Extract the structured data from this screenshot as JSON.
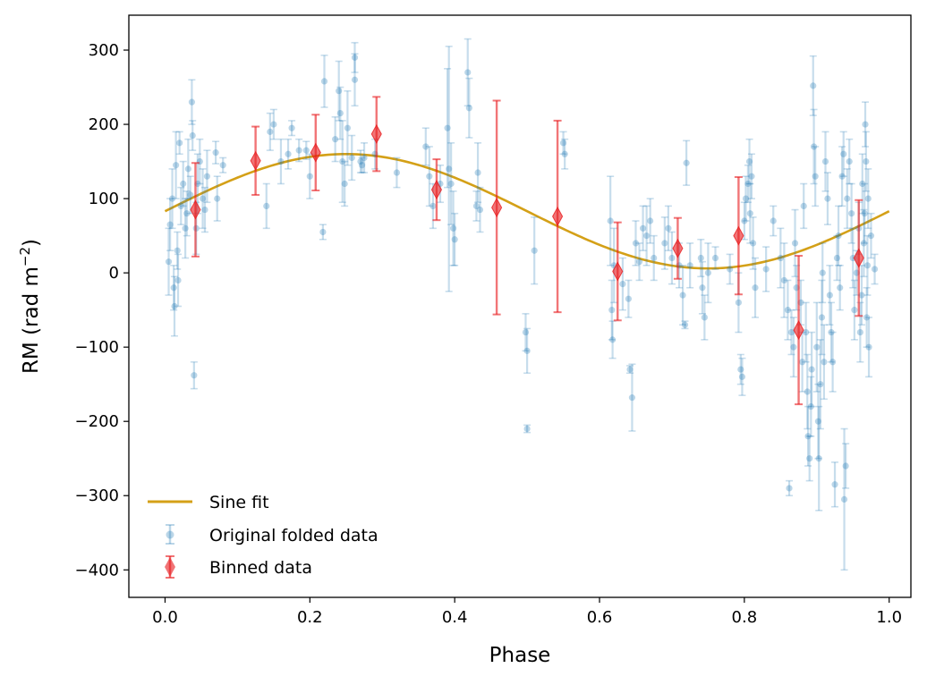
{
  "chart_data": {
    "type": "scatter",
    "xlabel": "Phase",
    "ylabel_main": "RM (rad m",
    "ylabel_exp": "−2",
    "ylabel_close": ")",
    "xlim": [
      -0.05,
      1.03
    ],
    "ylim": [
      -437,
      347
    ],
    "xticks": [
      0.0,
      0.2,
      0.4,
      0.6,
      0.8,
      1.0
    ],
    "xtick_labels": [
      "0.0",
      "0.2",
      "0.4",
      "0.6",
      "0.8",
      "1.0"
    ],
    "yticks": [
      300,
      200,
      100,
      0,
      -100,
      -200,
      -300,
      -400
    ],
    "ytick_labels": [
      "300",
      "200",
      "100",
      "0",
      "−100",
      "−200",
      "−300",
      "−400"
    ],
    "legend": {
      "placement": "lower-left",
      "entries": [
        "Sine fit",
        "Original folded data",
        "Binned data"
      ]
    },
    "colors": {
      "fit": "#d4a017",
      "original": "#1f77b4",
      "binned": "#e8191c"
    },
    "sine_fit": {
      "offset": 83,
      "amplitude": 77,
      "phase_peak": 0.25
    },
    "binned": [
      {
        "x": 0.042,
        "y": 85,
        "err": 63
      },
      {
        "x": 0.125,
        "y": 151,
        "err": 46
      },
      {
        "x": 0.208,
        "y": 162,
        "err": 51
      },
      {
        "x": 0.292,
        "y": 187,
        "err": 50
      },
      {
        "x": 0.375,
        "y": 112,
        "err": 41
      },
      {
        "x": 0.458,
        "y": 88,
        "err": 144
      },
      {
        "x": 0.542,
        "y": 76,
        "err": 129
      },
      {
        "x": 0.625,
        "y": 2,
        "err": 66
      },
      {
        "x": 0.708,
        "y": 33,
        "err": 41
      },
      {
        "x": 0.792,
        "y": 50,
        "err": 79
      },
      {
        "x": 0.875,
        "y": -77,
        "err": 100
      },
      {
        "x": 0.958,
        "y": 20,
        "err": 78
      }
    ],
    "original": [
      {
        "x": 0.005,
        "y": 15,
        "err": 45
      },
      {
        "x": 0.007,
        "y": 65,
        "err": 35
      },
      {
        "x": 0.01,
        "y": 100,
        "err": 40
      },
      {
        "x": 0.012,
        "y": -20,
        "err": 30
      },
      {
        "x": 0.013,
        "y": -45,
        "err": 40
      },
      {
        "x": 0.015,
        "y": 145,
        "err": 45
      },
      {
        "x": 0.017,
        "y": 30,
        "err": 25
      },
      {
        "x": 0.018,
        "y": -10,
        "err": 35
      },
      {
        "x": 0.02,
        "y": 175,
        "err": 15
      },
      {
        "x": 0.022,
        "y": 90,
        "err": 25
      },
      {
        "x": 0.025,
        "y": 120,
        "err": 30
      },
      {
        "x": 0.028,
        "y": 60,
        "err": 40
      },
      {
        "x": 0.03,
        "y": 80,
        "err": 30
      },
      {
        "x": 0.032,
        "y": 140,
        "err": 40
      },
      {
        "x": 0.035,
        "y": 105,
        "err": 25
      },
      {
        "x": 0.037,
        "y": 230,
        "err": 30
      },
      {
        "x": 0.038,
        "y": 185,
        "err": 20
      },
      {
        "x": 0.04,
        "y": -138,
        "err": 18
      },
      {
        "x": 0.043,
        "y": 60,
        "err": 35
      },
      {
        "x": 0.045,
        "y": 120,
        "err": 40
      },
      {
        "x": 0.048,
        "y": 150,
        "err": 30
      },
      {
        "x": 0.052,
        "y": 100,
        "err": 40
      },
      {
        "x": 0.055,
        "y": 85,
        "err": 30
      },
      {
        "x": 0.058,
        "y": 130,
        "err": 35
      },
      {
        "x": 0.07,
        "y": 162,
        "err": 15
      },
      {
        "x": 0.072,
        "y": 100,
        "err": 30
      },
      {
        "x": 0.08,
        "y": 145,
        "err": 10
      },
      {
        "x": 0.14,
        "y": 90,
        "err": 30
      },
      {
        "x": 0.145,
        "y": 190,
        "err": 25
      },
      {
        "x": 0.15,
        "y": 200,
        "err": 20
      },
      {
        "x": 0.16,
        "y": 150,
        "err": 30
      },
      {
        "x": 0.17,
        "y": 160,
        "err": 20
      },
      {
        "x": 0.175,
        "y": 195,
        "err": 10
      },
      {
        "x": 0.185,
        "y": 165,
        "err": 15
      },
      {
        "x": 0.195,
        "y": 165,
        "err": 12
      },
      {
        "x": 0.2,
        "y": 130,
        "err": 30
      },
      {
        "x": 0.218,
        "y": 55,
        "err": 10
      },
      {
        "x": 0.22,
        "y": 258,
        "err": 35
      },
      {
        "x": 0.235,
        "y": 180,
        "err": 30
      },
      {
        "x": 0.24,
        "y": 245,
        "err": 40
      },
      {
        "x": 0.242,
        "y": 215,
        "err": 35
      },
      {
        "x": 0.245,
        "y": 150,
        "err": 55
      },
      {
        "x": 0.248,
        "y": 120,
        "err": 30
      },
      {
        "x": 0.252,
        "y": 195,
        "err": 50
      },
      {
        "x": 0.258,
        "y": 155,
        "err": 30
      },
      {
        "x": 0.262,
        "y": 290,
        "err": 20
      },
      {
        "x": 0.262,
        "y": 260,
        "err": 35
      },
      {
        "x": 0.27,
        "y": 150,
        "err": 15
      },
      {
        "x": 0.272,
        "y": 145,
        "err": 10
      },
      {
        "x": 0.275,
        "y": 155,
        "err": 20
      },
      {
        "x": 0.29,
        "y": 160,
        "err": 20
      },
      {
        "x": 0.32,
        "y": 135,
        "err": 20
      },
      {
        "x": 0.36,
        "y": 170,
        "err": 25
      },
      {
        "x": 0.365,
        "y": 130,
        "err": 40
      },
      {
        "x": 0.37,
        "y": 90,
        "err": 30
      },
      {
        "x": 0.38,
        "y": 120,
        "err": 25
      },
      {
        "x": 0.39,
        "y": 195,
        "err": 80
      },
      {
        "x": 0.392,
        "y": 140,
        "err": 165
      },
      {
        "x": 0.395,
        "y": 120,
        "err": 55
      },
      {
        "x": 0.398,
        "y": 60,
        "err": 50
      },
      {
        "x": 0.4,
        "y": 45,
        "err": 35
      },
      {
        "x": 0.418,
        "y": 270,
        "err": 45
      },
      {
        "x": 0.42,
        "y": 222,
        "err": 40
      },
      {
        "x": 0.43,
        "y": 90,
        "err": 20
      },
      {
        "x": 0.432,
        "y": 135,
        "err": 40
      },
      {
        "x": 0.435,
        "y": 85,
        "err": 30
      },
      {
        "x": 0.498,
        "y": -80,
        "err": 25
      },
      {
        "x": 0.5,
        "y": -105,
        "err": 30
      },
      {
        "x": 0.5,
        "y": -210,
        "err": 5
      },
      {
        "x": 0.51,
        "y": 30,
        "err": 45
      },
      {
        "x": 0.55,
        "y": 175,
        "err": 15
      },
      {
        "x": 0.552,
        "y": 160,
        "err": 20
      },
      {
        "x": 0.615,
        "y": 70,
        "err": 60
      },
      {
        "x": 0.617,
        "y": -50,
        "err": 40
      },
      {
        "x": 0.62,
        "y": 10,
        "err": 50
      },
      {
        "x": 0.618,
        "y": -90,
        "err": 25
      },
      {
        "x": 0.632,
        "y": -15,
        "err": 35
      },
      {
        "x": 0.64,
        "y": -35,
        "err": 25
      },
      {
        "x": 0.642,
        "y": -130,
        "err": 5
      },
      {
        "x": 0.645,
        "y": -168,
        "err": 45
      },
      {
        "x": 0.65,
        "y": 40,
        "err": 30
      },
      {
        "x": 0.655,
        "y": 15,
        "err": 25
      },
      {
        "x": 0.66,
        "y": 60,
        "err": 30
      },
      {
        "x": 0.665,
        "y": 50,
        "err": 40
      },
      {
        "x": 0.67,
        "y": 70,
        "err": 30
      },
      {
        "x": 0.675,
        "y": 20,
        "err": 30
      },
      {
        "x": 0.69,
        "y": 40,
        "err": 35
      },
      {
        "x": 0.695,
        "y": 60,
        "err": 30
      },
      {
        "x": 0.7,
        "y": 20,
        "err": 35
      },
      {
        "x": 0.71,
        "y": 10,
        "err": 30
      },
      {
        "x": 0.715,
        "y": -30,
        "err": 40
      },
      {
        "x": 0.718,
        "y": -70,
        "err": 5
      },
      {
        "x": 0.72,
        "y": 148,
        "err": 30
      },
      {
        "x": 0.725,
        "y": 10,
        "err": 30
      },
      {
        "x": 0.74,
        "y": 20,
        "err": 25
      },
      {
        "x": 0.742,
        "y": -20,
        "err": 35
      },
      {
        "x": 0.745,
        "y": -60,
        "err": 30
      },
      {
        "x": 0.75,
        "y": 0,
        "err": 40
      },
      {
        "x": 0.76,
        "y": 20,
        "err": 15
      },
      {
        "x": 0.78,
        "y": 5,
        "err": 20
      },
      {
        "x": 0.792,
        "y": -40,
        "err": 40
      },
      {
        "x": 0.795,
        "y": -130,
        "err": 20
      },
      {
        "x": 0.797,
        "y": -140,
        "err": 25
      },
      {
        "x": 0.8,
        "y": 70,
        "err": 25
      },
      {
        "x": 0.802,
        "y": 100,
        "err": 30
      },
      {
        "x": 0.805,
        "y": 120,
        "err": 25
      },
      {
        "x": 0.807,
        "y": 150,
        "err": 30
      },
      {
        "x": 0.808,
        "y": 80,
        "err": 40
      },
      {
        "x": 0.81,
        "y": 130,
        "err": 30
      },
      {
        "x": 0.812,
        "y": 40,
        "err": 35
      },
      {
        "x": 0.815,
        "y": -20,
        "err": 40
      },
      {
        "x": 0.83,
        "y": 5,
        "err": 30
      },
      {
        "x": 0.84,
        "y": 70,
        "err": 20
      },
      {
        "x": 0.85,
        "y": 20,
        "err": 40
      },
      {
        "x": 0.855,
        "y": -10,
        "err": 50
      },
      {
        "x": 0.86,
        "y": -50,
        "err": 40
      },
      {
        "x": 0.862,
        "y": -290,
        "err": 10
      },
      {
        "x": 0.865,
        "y": -80,
        "err": 30
      },
      {
        "x": 0.868,
        "y": -100,
        "err": 40
      },
      {
        "x": 0.87,
        "y": 40,
        "err": 45
      },
      {
        "x": 0.872,
        "y": -20,
        "err": 30
      },
      {
        "x": 0.878,
        "y": -40,
        "err": 30
      },
      {
        "x": 0.88,
        "y": -120,
        "err": 40
      },
      {
        "x": 0.882,
        "y": 90,
        "err": 30
      },
      {
        "x": 0.885,
        "y": -80,
        "err": 40
      },
      {
        "x": 0.887,
        "y": -160,
        "err": 50
      },
      {
        "x": 0.888,
        "y": -220,
        "err": 40
      },
      {
        "x": 0.89,
        "y": -250,
        "err": 30
      },
      {
        "x": 0.892,
        "y": -180,
        "err": 40
      },
      {
        "x": 0.893,
        "y": -130,
        "err": 50
      },
      {
        "x": 0.895,
        "y": 252,
        "err": 40
      },
      {
        "x": 0.896,
        "y": 170,
        "err": 50
      },
      {
        "x": 0.898,
        "y": 130,
        "err": 40
      },
      {
        "x": 0.9,
        "y": -100,
        "err": 60
      },
      {
        "x": 0.902,
        "y": -200,
        "err": 50
      },
      {
        "x": 0.903,
        "y": -250,
        "err": 70
      },
      {
        "x": 0.905,
        "y": -150,
        "err": 60
      },
      {
        "x": 0.907,
        "y": -60,
        "err": 50
      },
      {
        "x": 0.908,
        "y": 0,
        "err": 40
      },
      {
        "x": 0.91,
        "y": -120,
        "err": 50
      },
      {
        "x": 0.912,
        "y": 150,
        "err": 40
      },
      {
        "x": 0.915,
        "y": 100,
        "err": 35
      },
      {
        "x": 0.918,
        "y": -30,
        "err": 40
      },
      {
        "x": 0.92,
        "y": -80,
        "err": 40
      },
      {
        "x": 0.922,
        "y": -120,
        "err": 40
      },
      {
        "x": 0.925,
        "y": -285,
        "err": 30
      },
      {
        "x": 0.928,
        "y": 20,
        "err": 30
      },
      {
        "x": 0.93,
        "y": 50,
        "err": 40
      },
      {
        "x": 0.932,
        "y": -20,
        "err": 30
      },
      {
        "x": 0.935,
        "y": 130,
        "err": 40
      },
      {
        "x": 0.937,
        "y": 160,
        "err": 30
      },
      {
        "x": 0.938,
        "y": -305,
        "err": 95
      },
      {
        "x": 0.94,
        "y": -260,
        "err": 30
      },
      {
        "x": 0.942,
        "y": 100,
        "err": 40
      },
      {
        "x": 0.945,
        "y": 150,
        "err": 30
      },
      {
        "x": 0.948,
        "y": 80,
        "err": 40
      },
      {
        "x": 0.95,
        "y": 20,
        "err": 40
      },
      {
        "x": 0.952,
        "y": -50,
        "err": 40
      },
      {
        "x": 0.955,
        "y": 0,
        "err": 30
      },
      {
        "x": 0.958,
        "y": 60,
        "err": 35
      },
      {
        "x": 0.96,
        "y": -80,
        "err": 40
      },
      {
        "x": 0.962,
        "y": -30,
        "err": 40
      },
      {
        "x": 0.963,
        "y": 120,
        "err": 40
      },
      {
        "x": 0.965,
        "y": 40,
        "err": 45
      },
      {
        "x": 0.966,
        "y": 80,
        "err": 40
      },
      {
        "x": 0.967,
        "y": 200,
        "err": 30
      },
      {
        "x": 0.968,
        "y": 150,
        "err": 40
      },
      {
        "x": 0.969,
        "y": -60,
        "err": 40
      },
      {
        "x": 0.97,
        "y": 10,
        "err": 40
      },
      {
        "x": 0.971,
        "y": 100,
        "err": 40
      },
      {
        "x": 0.972,
        "y": -100,
        "err": 40
      },
      {
        "x": 0.975,
        "y": 50,
        "err": 30
      },
      {
        "x": 0.98,
        "y": 5,
        "err": 20
      }
    ]
  }
}
